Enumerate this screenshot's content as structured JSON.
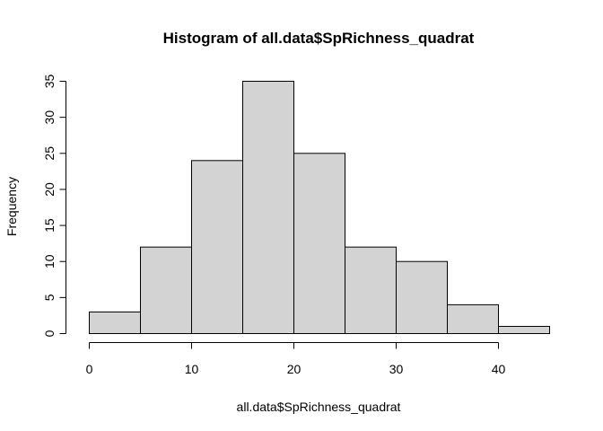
{
  "chart_data": {
    "type": "bar",
    "title": "Histogram of all.data$SpRichness_quadrat",
    "xlabel": "all.data$SpRichness_quadrat",
    "ylabel": "Frequency",
    "bins": [
      {
        "start": 0,
        "end": 5,
        "count": 3
      },
      {
        "start": 5,
        "end": 10,
        "count": 12
      },
      {
        "start": 10,
        "end": 15,
        "count": 24
      },
      {
        "start": 15,
        "end": 20,
        "count": 35
      },
      {
        "start": 20,
        "end": 25,
        "count": 25
      },
      {
        "start": 25,
        "end": 30,
        "count": 12
      },
      {
        "start": 30,
        "end": 35,
        "count": 10
      },
      {
        "start": 35,
        "end": 40,
        "count": 4
      },
      {
        "start": 40,
        "end": 45,
        "count": 1
      }
    ],
    "xlim": [
      0,
      45
    ],
    "ylim": [
      0,
      35
    ],
    "xticks": [
      0,
      10,
      20,
      30,
      40
    ],
    "yticks": [
      0,
      5,
      10,
      15,
      20,
      25,
      30,
      35
    ],
    "grid": false,
    "legend": "none",
    "bar_fill": "#d3d3d3",
    "bar_stroke": "#000000"
  }
}
